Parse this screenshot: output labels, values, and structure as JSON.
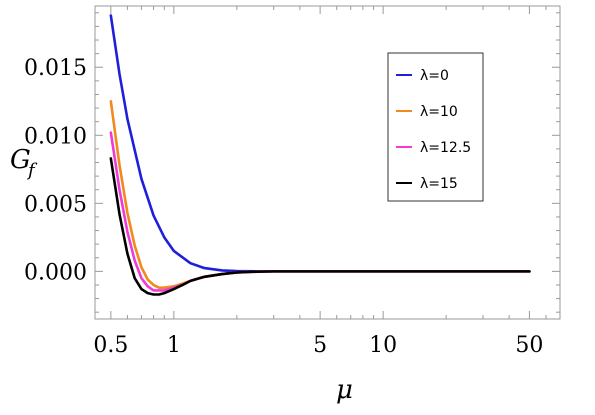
{
  "chart_data": {
    "type": "line",
    "xlabel": "μ",
    "ylabel": "G",
    "ylabel_subscript": "f",
    "x_scale": "log",
    "xlim": [
      0.42,
      70
    ],
    "ylim": [
      -0.0035,
      0.0195
    ],
    "x_ticks": [
      0.5,
      1,
      5,
      10,
      50
    ],
    "x_tick_labels": [
      "0.5",
      "1",
      "5",
      "10",
      "50"
    ],
    "y_ticks": [
      0.015,
      0.01,
      0.005,
      0.0
    ],
    "y_tick_labels": [
      "0.015",
      "0.010",
      "0.005",
      "0.000"
    ],
    "grid": false,
    "legend_position": "top-right",
    "series": [
      {
        "name": "λ=0",
        "color": "#1f1fdb",
        "x": [
          0.5,
          0.55,
          0.6,
          0.7,
          0.8,
          0.9,
          1.0,
          1.2,
          1.4,
          1.7,
          2.0,
          2.5,
          3,
          5,
          10,
          20,
          50
        ],
        "y": [
          0.0188,
          0.0145,
          0.0112,
          0.0068,
          0.0041,
          0.0025,
          0.0015,
          0.0006,
          0.00024,
          7e-05,
          2e-05,
          0.0,
          0.0,
          0.0,
          0.0,
          0.0,
          0.0
        ]
      },
      {
        "name": "λ=10",
        "color": "#f08a1c",
        "x": [
          0.5,
          0.55,
          0.6,
          0.65,
          0.7,
          0.75,
          0.8,
          0.85,
          0.9,
          1.0,
          1.1,
          1.2,
          1.4,
          1.7,
          2.0,
          2.5,
          3,
          5,
          10,
          20,
          50
        ],
        "y": [
          0.0125,
          0.0078,
          0.0043,
          0.0019,
          0.0003,
          -0.0006,
          -0.001,
          -0.0012,
          -0.0012,
          -0.0011,
          -0.0009,
          -0.0007,
          -0.0004,
          -0.0002,
          -8e-05,
          -2e-05,
          0.0,
          0.0,
          0.0,
          0.0,
          0.0
        ]
      },
      {
        "name": "λ=12.5",
        "color": "#f03ad6",
        "x": [
          0.5,
          0.55,
          0.6,
          0.65,
          0.7,
          0.75,
          0.8,
          0.85,
          0.9,
          1.0,
          1.1,
          1.2,
          1.4,
          1.7,
          2.0,
          2.5,
          3,
          5,
          10,
          20,
          50
        ],
        "y": [
          0.0102,
          0.006,
          0.0029,
          0.0008,
          -0.0005,
          -0.0011,
          -0.0014,
          -0.0014,
          -0.0014,
          -0.0012,
          -0.001,
          -0.0007,
          -0.0004,
          -0.0002,
          -8e-05,
          -2e-05,
          0.0,
          0.0,
          0.0,
          0.0,
          0.0
        ]
      },
      {
        "name": "λ=15",
        "color": "#000000",
        "x": [
          0.5,
          0.55,
          0.6,
          0.65,
          0.7,
          0.75,
          0.8,
          0.85,
          0.9,
          1.0,
          1.1,
          1.2,
          1.4,
          1.7,
          2.0,
          2.5,
          3,
          5,
          10,
          20,
          50
        ],
        "y": [
          0.0083,
          0.0042,
          0.0013,
          -0.0005,
          -0.0013,
          -0.0016,
          -0.0017,
          -0.0017,
          -0.0016,
          -0.0013,
          -0.001,
          -0.0007,
          -0.0004,
          -0.0002,
          -8e-05,
          -2e-05,
          0.0,
          0.0,
          0.0,
          0.0,
          0.0
        ]
      }
    ]
  }
}
